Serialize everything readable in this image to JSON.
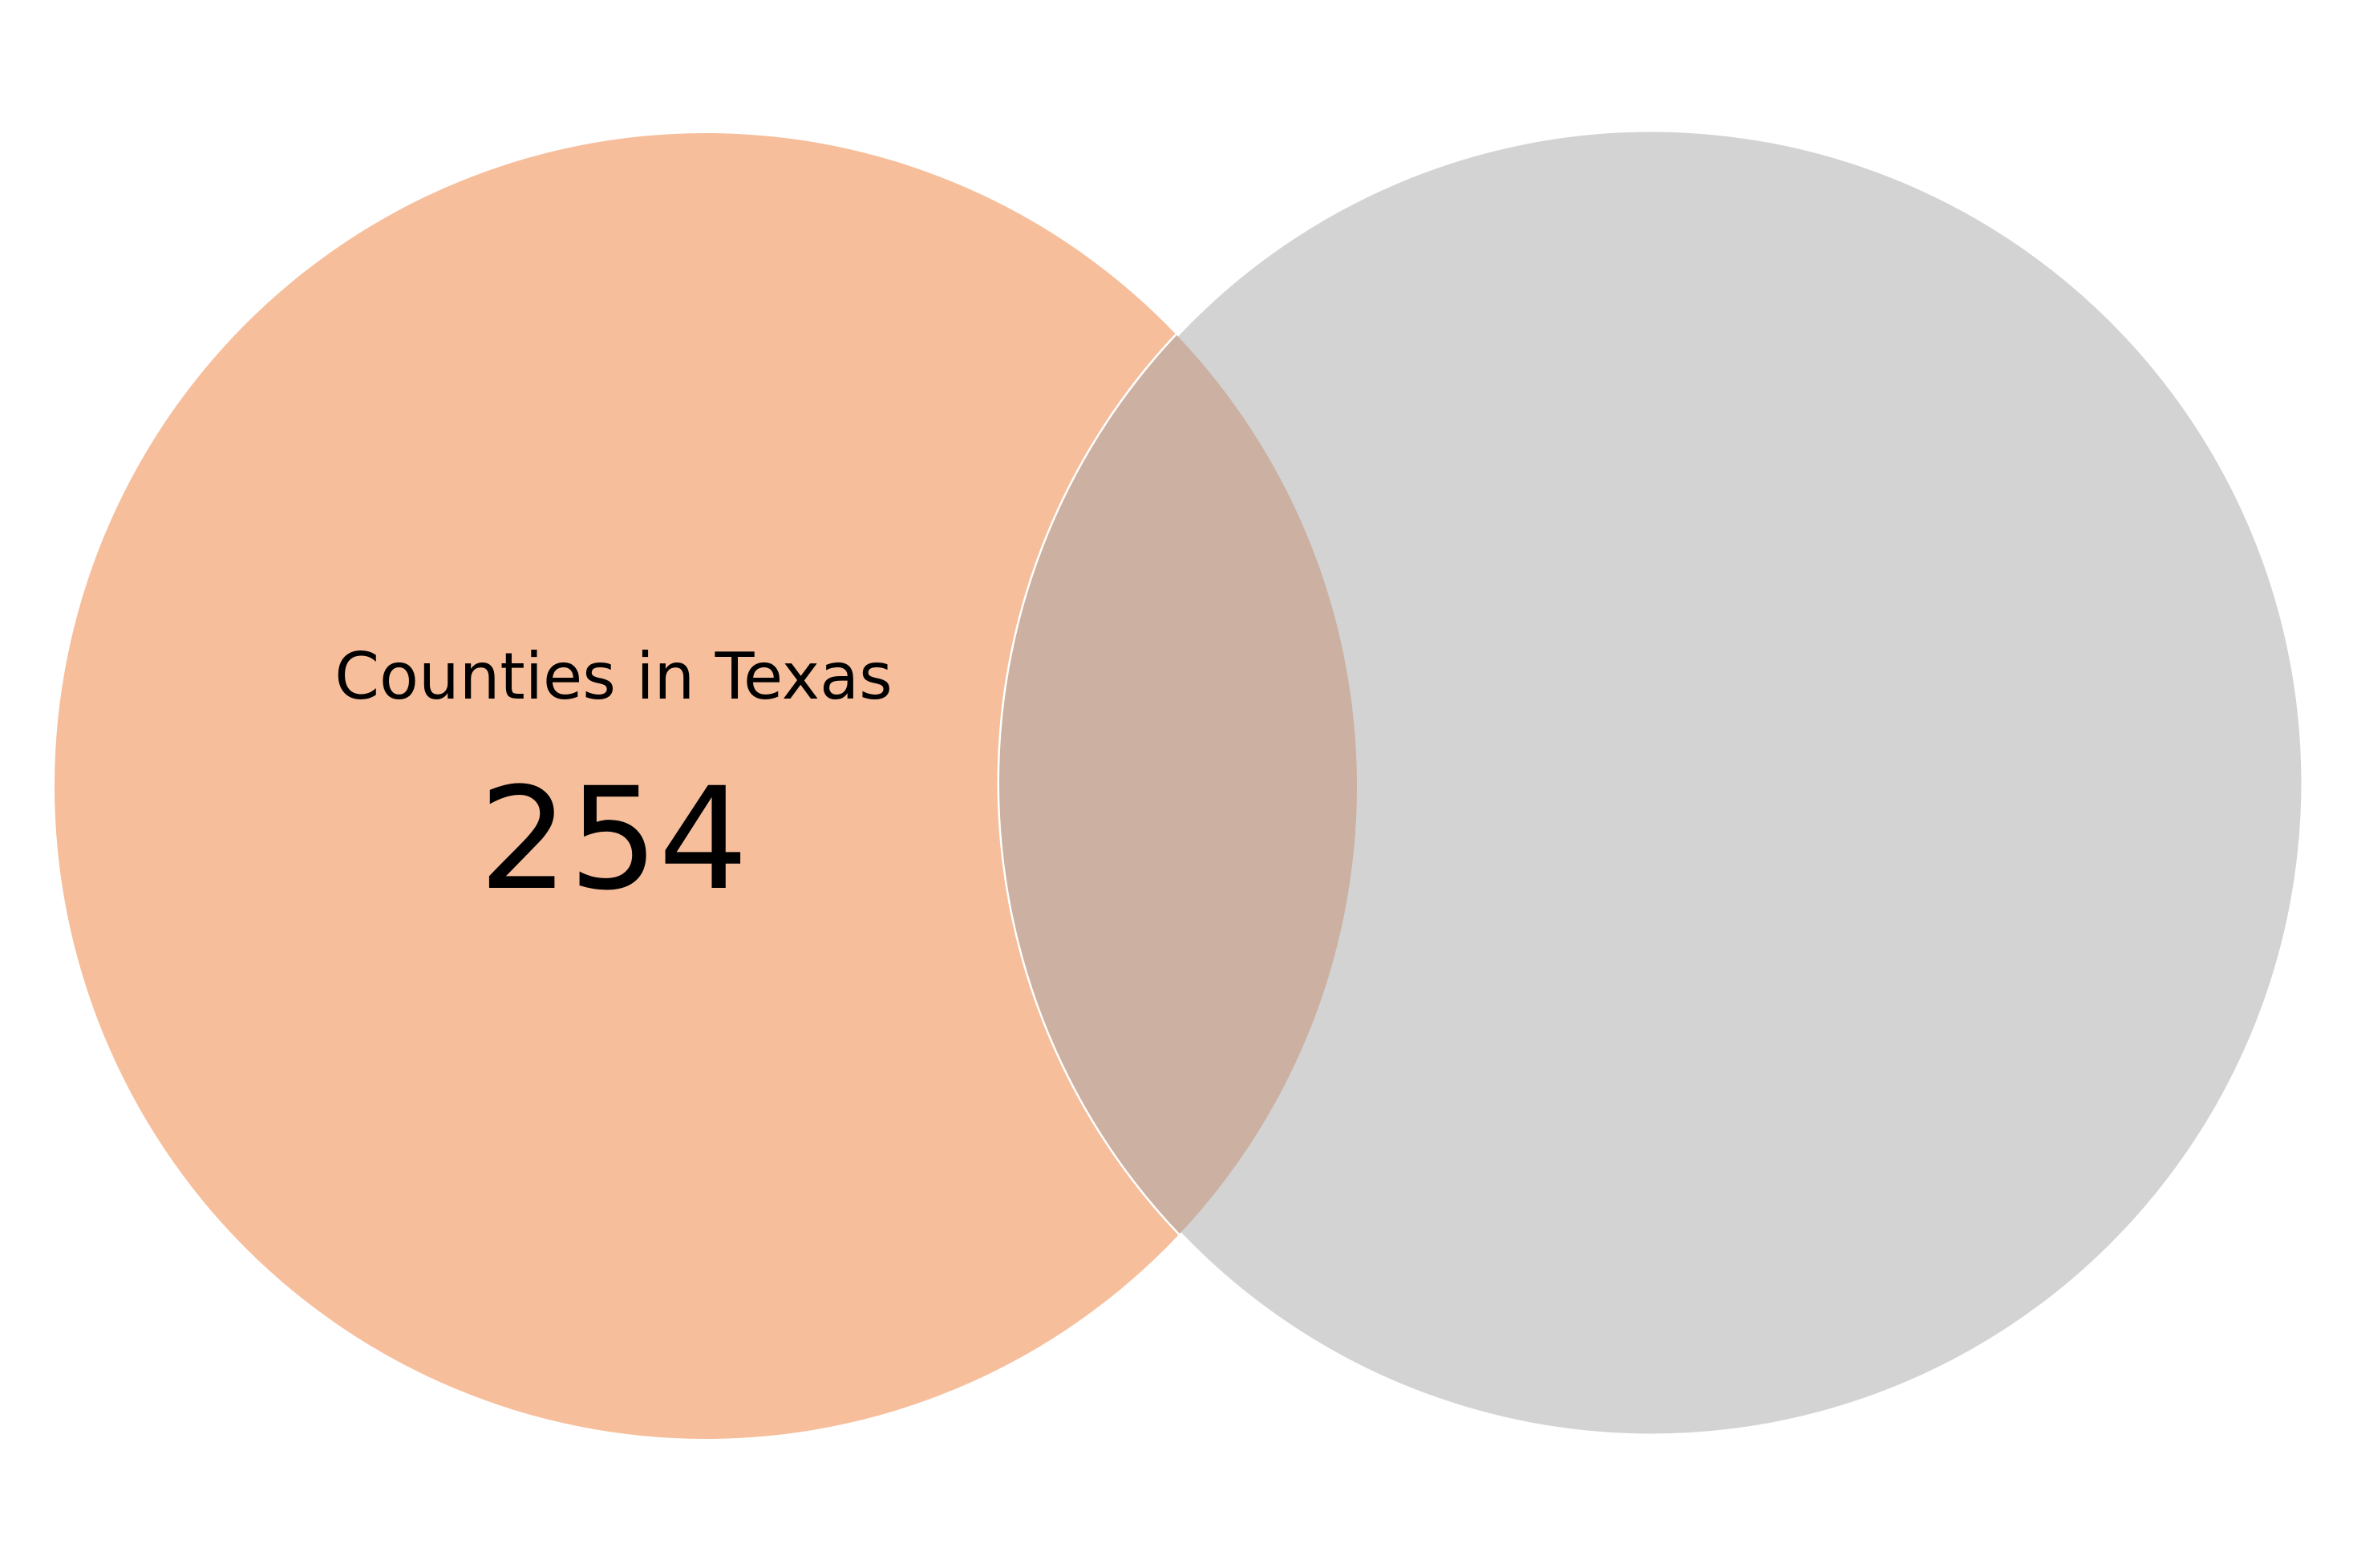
{
  "diagram": {
    "type": "venn",
    "sets": [
      {
        "label": "Counties in Texas",
        "count": "254",
        "color": "#f6be9b"
      },
      {
        "label": "",
        "count": "",
        "color": "#d3d3d3"
      }
    ],
    "intersection": {
      "color": "#ccb0a1"
    },
    "outline_color": "#ffffff",
    "background": "#ffffff"
  }
}
